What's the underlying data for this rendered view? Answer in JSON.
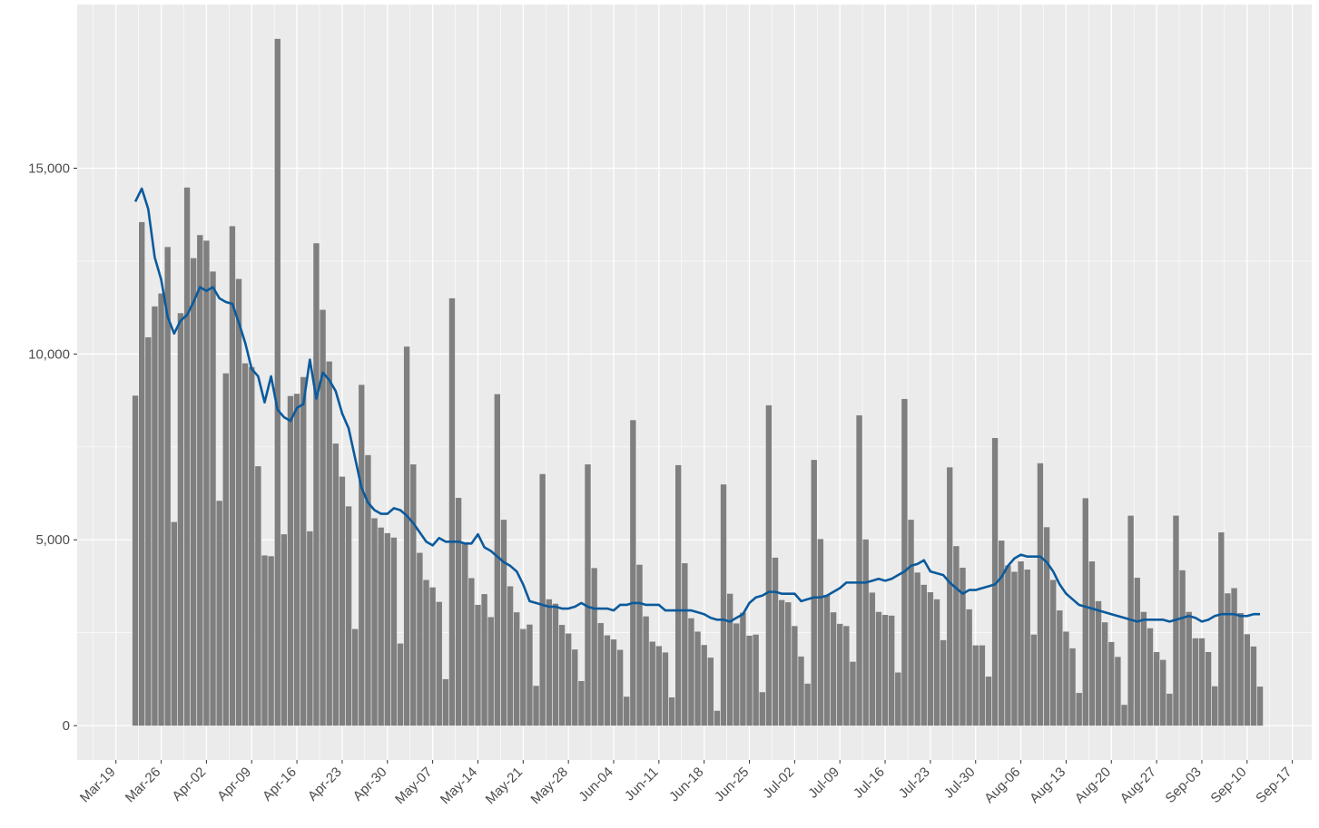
{
  "chart_data": {
    "type": "bar",
    "x": [
      "Mar-22",
      "Mar-23",
      "Mar-24",
      "Mar-25",
      "Mar-26",
      "Mar-27",
      "Mar-28",
      "Mar-29",
      "Mar-30",
      "Mar-31",
      "Apr-01",
      "Apr-02",
      "Apr-03",
      "Apr-04",
      "Apr-05",
      "Apr-06",
      "Apr-07",
      "Apr-08",
      "Apr-09",
      "Apr-10",
      "Apr-11",
      "Apr-12",
      "Apr-13",
      "Apr-14",
      "Apr-15",
      "Apr-16",
      "Apr-17",
      "Apr-18",
      "Apr-19",
      "Apr-20",
      "Apr-21",
      "Apr-22",
      "Apr-23",
      "Apr-24",
      "Apr-25",
      "Apr-26",
      "Apr-27",
      "Apr-28",
      "Apr-29",
      "Apr-30",
      "May-01",
      "May-02",
      "May-03",
      "May-04",
      "May-05",
      "May-06",
      "May-07",
      "May-08",
      "May-09",
      "May-10",
      "May-11",
      "May-12",
      "May-13",
      "May-14",
      "May-15",
      "May-16",
      "May-17",
      "May-18",
      "May-19",
      "May-20",
      "May-21",
      "May-22",
      "May-23",
      "May-24",
      "May-25",
      "May-26",
      "May-27",
      "May-28",
      "May-29",
      "May-30",
      "May-31",
      "Jun-01",
      "Jun-02",
      "Jun-03",
      "Jun-04",
      "Jun-05",
      "Jun-06",
      "Jun-07",
      "Jun-08",
      "Jun-09",
      "Jun-10",
      "Jun-11",
      "Jun-12",
      "Jun-13",
      "Jun-14",
      "Jun-15",
      "Jun-16",
      "Jun-17",
      "Jun-18",
      "Jun-19",
      "Jun-20",
      "Jun-21",
      "Jun-22",
      "Jun-23",
      "Jun-24",
      "Jun-25",
      "Jun-26",
      "Jun-27",
      "Jun-28",
      "Jun-29",
      "Jun-30",
      "Jul-01",
      "Jul-02",
      "Jul-03",
      "Jul-04",
      "Jul-05",
      "Jul-06",
      "Jul-07",
      "Jul-08",
      "Jul-09",
      "Jul-10",
      "Jul-11",
      "Jul-12",
      "Jul-13",
      "Jul-14",
      "Jul-15",
      "Jul-16",
      "Jul-17",
      "Jul-18",
      "Jul-19",
      "Jul-20",
      "Jul-21",
      "Jul-22",
      "Jul-23",
      "Jul-24",
      "Jul-25",
      "Jul-26",
      "Jul-27",
      "Jul-28",
      "Jul-29",
      "Jul-30",
      "Jul-31",
      "Aug-01",
      "Aug-02",
      "Aug-03",
      "Aug-04",
      "Aug-05",
      "Aug-06",
      "Aug-07",
      "Aug-08",
      "Aug-09",
      "Aug-10",
      "Aug-11",
      "Aug-12",
      "Aug-13",
      "Aug-14",
      "Aug-15",
      "Aug-16",
      "Aug-17",
      "Aug-18",
      "Aug-19",
      "Aug-20",
      "Aug-21",
      "Aug-22",
      "Aug-23",
      "Aug-24",
      "Aug-25",
      "Aug-26",
      "Aug-27",
      "Aug-28",
      "Aug-29",
      "Aug-30",
      "Aug-31",
      "Sep-01",
      "Sep-02",
      "Sep-03",
      "Sep-04",
      "Sep-05",
      "Sep-06",
      "Sep-07",
      "Sep-08",
      "Sep-09",
      "Sep-10",
      "Sep-11",
      "Sep-12"
    ],
    "series": [
      {
        "type": "bar",
        "color": "#7f7f7f",
        "values": [
          8880,
          13550,
          10450,
          11280,
          11630,
          12880,
          5480,
          11100,
          14480,
          12580,
          13200,
          13050,
          12220,
          6050,
          9480,
          13440,
          12020,
          9750,
          9650,
          6980,
          4580,
          4560,
          18480,
          5150,
          8870,
          8930,
          9380,
          5230,
          12980,
          11190,
          9800,
          7590,
          6700,
          5900,
          2600,
          9170,
          7280,
          5580,
          5330,
          5180,
          5060,
          2210,
          10200,
          7030,
          4650,
          3920,
          3720,
          3330,
          1250,
          11500,
          6130,
          4880,
          3970,
          3250,
          3540,
          2920,
          8920,
          5540,
          3750,
          3050,
          2600,
          2720,
          1070,
          6770,
          3400,
          3280,
          2710,
          2480,
          2050,
          1200,
          7030,
          4240,
          2760,
          2430,
          2320,
          2040,
          780,
          8220,
          4330,
          2940,
          2260,
          2140,
          1970,
          760,
          7010,
          4370,
          2890,
          2530,
          2170,
          1830,
          400,
          6490,
          3550,
          2750,
          3040,
          2420,
          2450,
          900,
          8620,
          4520,
          3380,
          3320,
          2680,
          1860,
          1130,
          7150,
          5020,
          3500,
          3050,
          2740,
          2680,
          1720,
          8350,
          5010,
          3580,
          3060,
          2980,
          2960,
          1430,
          8790,
          5540,
          4120,
          3790,
          3590,
          3400,
          2300,
          6950,
          4830,
          4250,
          3130,
          2160,
          2160,
          1320,
          7740,
          4980,
          4310,
          4140,
          4420,
          4200,
          2450,
          7060,
          5340,
          3920,
          3100,
          2530,
          2080,
          880,
          6120,
          4420,
          3350,
          2780,
          2250,
          1850,
          560,
          5650,
          3980,
          3060,
          2620,
          1980,
          1770,
          860,
          5650,
          4180,
          3060,
          2350,
          2350,
          1980,
          1060,
          5200,
          3560,
          3700,
          3030,
          2460,
          2130,
          1050
        ]
      },
      {
        "type": "line",
        "color": "#0b5a9c",
        "values": [
          14100,
          14450,
          13900,
          12600,
          12000,
          11000,
          10550,
          10900,
          11050,
          11400,
          11800,
          11700,
          11800,
          11500,
          11400,
          11350,
          10850,
          10300,
          9600,
          9400,
          8700,
          9400,
          8500,
          8300,
          8200,
          8550,
          8650,
          9850,
          8800,
          9500,
          9300,
          9000,
          8400,
          8000,
          7200,
          6400,
          6000,
          5800,
          5700,
          5700,
          5850,
          5800,
          5650,
          5450,
          5200,
          4950,
          4850,
          5050,
          4950,
          4950,
          4950,
          4900,
          4900,
          5150,
          4800,
          4700,
          4550,
          4400,
          4300,
          4150,
          3800,
          3350,
          3300,
          3250,
          3200,
          3200,
          3150,
          3150,
          3200,
          3300,
          3200,
          3150,
          3150,
          3150,
          3100,
          3250,
          3250,
          3300,
          3300,
          3250,
          3250,
          3250,
          3100,
          3100,
          3100,
          3100,
          3100,
          3050,
          3000,
          2900,
          2850,
          2850,
          2800,
          2900,
          3000,
          3300,
          3450,
          3500,
          3600,
          3600,
          3550,
          3550,
          3550,
          3350,
          3400,
          3450,
          3450,
          3500,
          3600,
          3700,
          3850,
          3850,
          3850,
          3850,
          3900,
          3950,
          3900,
          3950,
          4050,
          4150,
          4300,
          4350,
          4450,
          4150,
          4100,
          4050,
          3850,
          3700,
          3550,
          3650,
          3650,
          3700,
          3750,
          3800,
          4000,
          4300,
          4500,
          4600,
          4550,
          4550,
          4550,
          4400,
          4150,
          3800,
          3550,
          3400,
          3250,
          3200,
          3150,
          3100,
          3050,
          3000,
          2950,
          2900,
          2850,
          2800,
          2850,
          2850,
          2850,
          2850,
          2800,
          2850,
          2900,
          2950,
          2900,
          2800,
          2850,
          2950,
          3000,
          3000,
          3000,
          2950,
          2950,
          3000,
          3000
        ]
      }
    ],
    "xlim": [
      "Mar-13",
      "Sep-20"
    ],
    "xticks": [
      "Mar-19",
      "Mar-26",
      "Apr-02",
      "Apr-09",
      "Apr-16",
      "Apr-23",
      "Apr-30",
      "May-07",
      "May-14",
      "May-21",
      "May-28",
      "Jun-04",
      "Jun-11",
      "Jun-18",
      "Jun-25",
      "Jul-02",
      "Jul-09",
      "Jul-16",
      "Jul-23",
      "Jul-30",
      "Aug-06",
      "Aug-13",
      "Aug-20",
      "Aug-27",
      "Sep-03",
      "Sep-10",
      "Sep-17"
    ],
    "ylim": [
      -924,
      19404
    ],
    "yticks": [
      0,
      {
        "value": 5000,
        "label": "5,000"
      },
      {
        "value": 10000,
        "label": "10,000"
      },
      {
        "value": 15000,
        "label": "15,000"
      }
    ],
    "grid": true
  }
}
